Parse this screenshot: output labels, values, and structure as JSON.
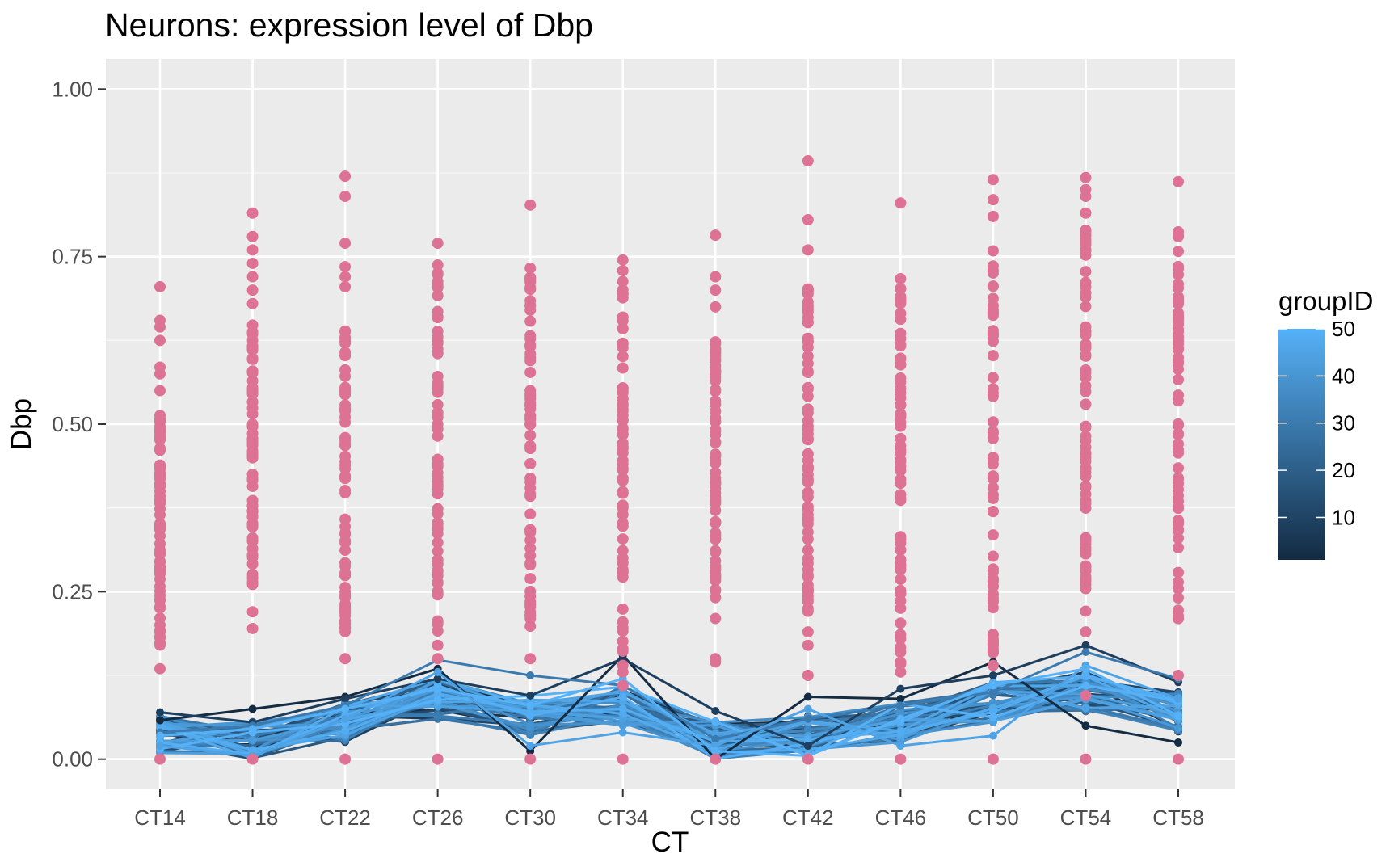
{
  "chart_data": {
    "type": "scatter",
    "title": "Neurons: expression level of Dbp",
    "xlabel": "CT",
    "ylabel": "Dbp",
    "categories": [
      "CT14",
      "CT18",
      "CT22",
      "CT26",
      "CT30",
      "CT34",
      "CT38",
      "CT42",
      "CT46",
      "CT50",
      "CT54",
      "CT58"
    ],
    "ylim": [
      -0.045,
      1.045
    ],
    "yticks": [
      0.0,
      0.25,
      0.5,
      0.75,
      1.0
    ],
    "ytick_labels": [
      "0.00",
      "0.25",
      "0.50",
      "0.75",
      "1.00"
    ],
    "grid": true,
    "point_color": "#de7294",
    "panel_color": "#ebebeb",
    "legend": {
      "title": "groupID",
      "type": "colorbar",
      "position": "right",
      "range": [
        1,
        50
      ],
      "ticks": [
        10,
        20,
        30,
        40,
        50
      ],
      "tick_labels": [
        "10",
        "20",
        "30",
        "40",
        "50"
      ],
      "color_low": "#132b43",
      "color_high": "#56b1f7"
    },
    "points_summary": [
      {
        "x": "CT14",
        "min": 0.0,
        "max": 0.705,
        "dense_min": 0.15,
        "dense_max": 0.52,
        "extra": [
          0.655,
          0.645,
          0.625,
          0.585,
          0.575,
          0.55,
          0.135
        ]
      },
      {
        "x": "CT18",
        "min": 0.0,
        "max": 0.815,
        "dense_min": 0.26,
        "dense_max": 0.66,
        "extra": [
          0.78,
          0.76,
          0.74,
          0.72,
          0.7,
          0.68,
          0.22,
          0.195
        ]
      },
      {
        "x": "CT22",
        "min": 0.0,
        "max": 0.87,
        "dense_min": 0.19,
        "dense_max": 0.68,
        "extra": [
          0.84,
          0.77,
          0.735,
          0.72,
          0.705,
          0.15
        ]
      },
      {
        "x": "CT26",
        "min": 0.0,
        "max": 0.77,
        "dense_min": 0.18,
        "dense_max": 0.75,
        "extra": [
          0.17,
          0.15
        ]
      },
      {
        "x": "CT30",
        "min": 0.0,
        "max": 0.827,
        "dense_min": 0.19,
        "dense_max": 0.735,
        "extra": [
          0.15
        ]
      },
      {
        "x": "CT34",
        "min": 0.0,
        "max": 0.745,
        "dense_min": 0.16,
        "dense_max": 0.745,
        "extra": [
          0.14,
          0.13,
          0.11
        ]
      },
      {
        "x": "CT38",
        "min": 0.0,
        "max": 0.782,
        "dense_min": 0.24,
        "dense_max": 0.635,
        "extra": [
          0.72,
          0.7,
          0.675,
          0.21,
          0.15,
          0.145
        ]
      },
      {
        "x": "CT42",
        "min": 0.0,
        "max": 0.893,
        "dense_min": 0.21,
        "dense_max": 0.72,
        "extra": [
          0.805,
          0.76,
          0.19,
          0.17,
          0.125
        ]
      },
      {
        "x": "CT46",
        "min": 0.0,
        "max": 0.83,
        "dense_min": 0.14,
        "dense_max": 0.735,
        "extra": [
          0.13
        ]
      },
      {
        "x": "CT50",
        "min": 0.0,
        "max": 0.865,
        "dense_min": 0.15,
        "dense_max": 0.77,
        "extra": [
          0.835,
          0.81,
          0.14
        ]
      },
      {
        "x": "CT54",
        "min": 0.0,
        "max": 0.868,
        "dense_min": 0.22,
        "dense_max": 0.79,
        "extra": [
          0.85,
          0.84,
          0.815,
          0.19,
          0.095
        ]
      },
      {
        "x": "CT58",
        "min": 0.0,
        "max": 0.862,
        "dense_min": 0.2,
        "dense_max": 0.79,
        "extra": [
          0.78,
          0.125
        ]
      }
    ],
    "group_lines": {
      "groups": 50,
      "mean_profile": [
        0.035,
        0.03,
        0.055,
        0.09,
        0.065,
        0.08,
        0.03,
        0.035,
        0.055,
        0.085,
        0.1,
        0.07
      ],
      "highlight_series": [
        {
          "group": 1,
          "values": [
            0.058,
            0.075,
            0.093,
            0.135,
            0.012,
            0.155,
            0.0,
            0.093,
            0.09,
            0.145,
            0.05,
            0.025
          ]
        },
        {
          "group": 8,
          "values": [
            0.07,
            0.055,
            0.09,
            0.12,
            0.095,
            0.15,
            0.072,
            0.02,
            0.105,
            0.125,
            0.17,
            0.115
          ]
        },
        {
          "group": 30,
          "values": [
            0.04,
            0.05,
            0.08,
            0.148,
            0.125,
            0.11,
            0.03,
            0.06,
            0.08,
            0.1,
            0.16,
            0.12
          ]
        },
        {
          "group": 45,
          "values": [
            0.02,
            0.005,
            0.06,
            0.13,
            0.02,
            0.04,
            0.02,
            0.075,
            0.02,
            0.035,
            0.14,
            0.09
          ]
        },
        {
          "group": 50,
          "values": [
            0.035,
            0.045,
            0.075,
            0.105,
            0.08,
            0.12,
            0.012,
            0.005,
            0.06,
            0.11,
            0.135,
            0.065
          ]
        }
      ]
    }
  }
}
